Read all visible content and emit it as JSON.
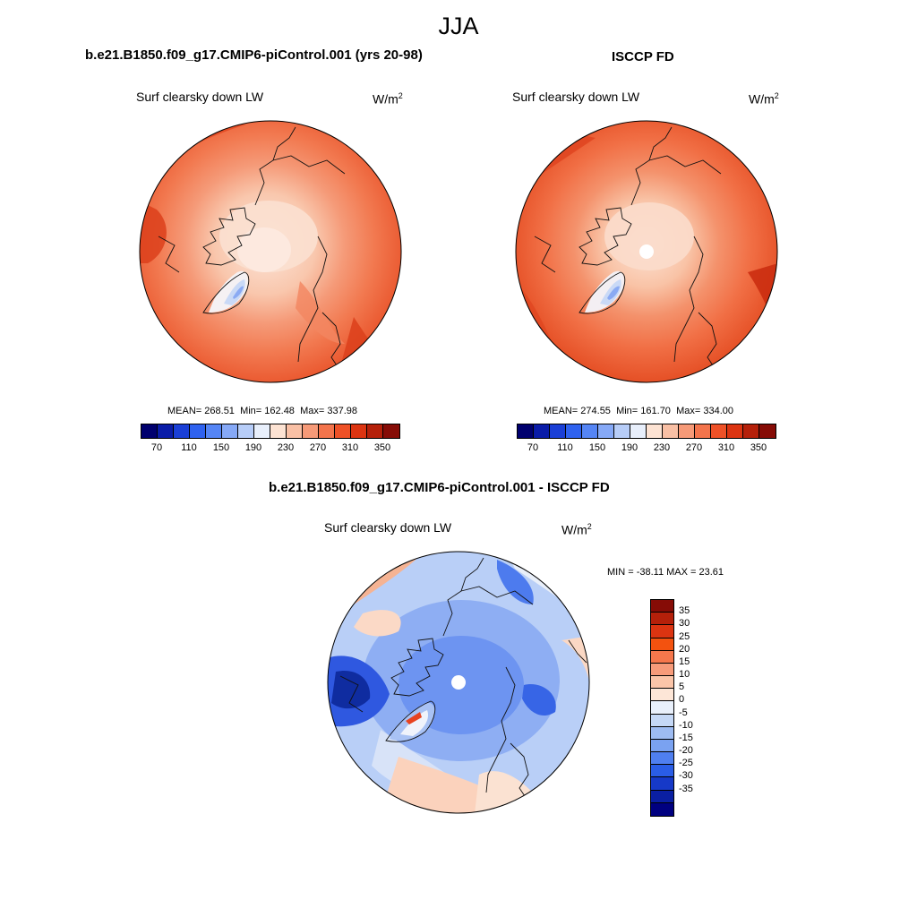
{
  "main_title": "JJA",
  "panels": [
    {
      "case_title": "b.e21.B1850.f09_g17.CMIP6-piControl.001 (yrs 20-98)",
      "variable": "Surf clearsky down LW",
      "units_base": "W/m",
      "units_exp": "2",
      "mean_label": "MEAN=",
      "mean": "268.51",
      "min_label": "Min=",
      "min": "162.48",
      "max_label": "Max=",
      "max": "337.98"
    },
    {
      "case_title": "ISCCP FD",
      "variable": "Surf clearsky down LW",
      "units_base": "W/m",
      "units_exp": "2",
      "mean_label": "MEAN=",
      "mean": "274.55",
      "min_label": "Min=",
      "min": "161.70",
      "max_label": "Max=",
      "max": "334.00"
    }
  ],
  "abs_colorbar": {
    "colors": [
      "#00006e",
      "#0a1ca8",
      "#1a3fd6",
      "#2f62ef",
      "#5585f5",
      "#86a9f7",
      "#b7cdf8",
      "#e8effb",
      "#fde3d3",
      "#f9c0a5",
      "#f69a78",
      "#f3744c",
      "#ee5127",
      "#dc3411",
      "#b5200a",
      "#860c06"
    ],
    "tick_labels": [
      "70",
      "110",
      "150",
      "190",
      "230",
      "270",
      "310",
      "350"
    ]
  },
  "diff_panel": {
    "case_title": "b.e21.B1850.f09_g17.CMIP6-piControl.001 - ISCCP FD",
    "variable": "Surf clearsky down LW",
    "units_base": "W/m",
    "units_exp": "2",
    "minmax_text": "MIN = -38.11 MAX =  23.61"
  },
  "diff_colorbar": {
    "colors": [
      "#860c06",
      "#b5200a",
      "#dc3411",
      "#f3520f",
      "#f6774c",
      "#f79b7a",
      "#fbc5a9",
      "#fde6d7",
      "#e9f0fb",
      "#c5d8f6",
      "#9ebcf2",
      "#7aa2f1",
      "#4f7ff0",
      "#2a5de6",
      "#1639c8",
      "#0a1fa2",
      "#000080"
    ],
    "tick_labels": [
      "35",
      "30",
      "25",
      "20",
      "15",
      "10",
      "5",
      "0",
      "-5",
      "-10",
      "-15",
      "-20",
      "-25",
      "-30",
      "-35"
    ]
  }
}
